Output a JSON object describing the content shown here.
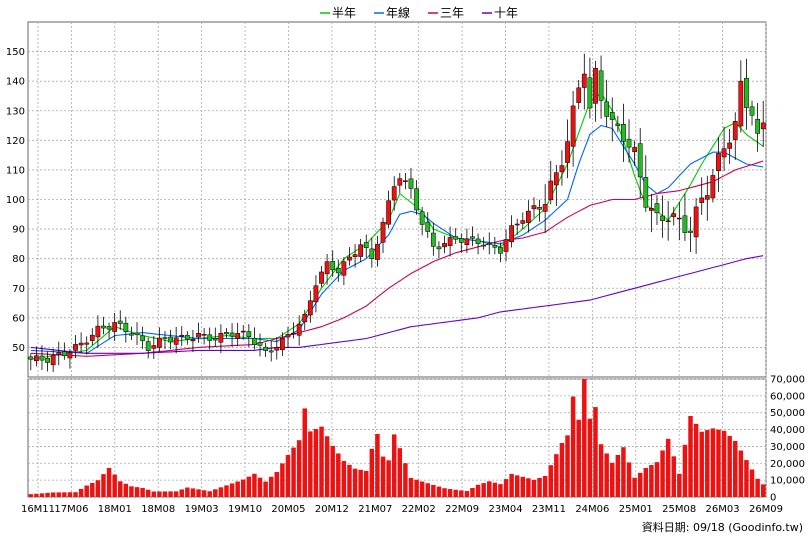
{
  "legend": [
    {
      "label": "半年",
      "color": "#00cc00"
    },
    {
      "label": "年線",
      "color": "#0066ff"
    },
    {
      "label": "三年",
      "color": "#cc0055"
    },
    {
      "label": "十年",
      "color": "#6600cc"
    }
  ],
  "source_note": "資料日期: 09/18  (Goodinfo.tw)",
  "colors": {
    "up": "#ee1111",
    "down": "#22bb22",
    "volume": "#ee1111",
    "grid": "#aaaaaa"
  },
  "chart_data": {
    "type": "candlestick-with-volume",
    "x_labels": [
      "16M11",
      "17M06",
      "18M01",
      "18M08",
      "19M03",
      "19M10",
      "20M05",
      "20M12",
      "21M07",
      "22M02",
      "22M09",
      "23M04",
      "23M11",
      "24M06",
      "25M01",
      "25M08",
      "26M03",
      "26M09"
    ],
    "price_axis": {
      "ticks": [
        50,
        60,
        70,
        80,
        90,
        100,
        110,
        120,
        130,
        140,
        150
      ],
      "range": [
        40,
        160
      ]
    },
    "volume_axis": {
      "ticks": [
        "0",
        "10,000",
        "20,000",
        "30,000",
        "40,000",
        "50,000",
        "60,000",
        "70,000"
      ],
      "range": [
        0,
        70000
      ]
    },
    "grid": true,
    "legend_position": "top-center",
    "anchors_price": [
      [
        0,
        46
      ],
      [
        3,
        46
      ],
      [
        6,
        48
      ],
      [
        9,
        51
      ],
      [
        12,
        56
      ],
      [
        15,
        58
      ],
      [
        18,
        55
      ],
      [
        21,
        50
      ],
      [
        24,
        53
      ],
      [
        27,
        53
      ],
      [
        30,
        54
      ],
      [
        33,
        53
      ],
      [
        36,
        55
      ],
      [
        39,
        54
      ],
      [
        42,
        48
      ],
      [
        45,
        52
      ],
      [
        47,
        56
      ],
      [
        49,
        60
      ],
      [
        51,
        72
      ],
      [
        53,
        78
      ],
      [
        55,
        76
      ],
      [
        57,
        80
      ],
      [
        59,
        85
      ],
      [
        61,
        80
      ],
      [
        63,
        92
      ],
      [
        65,
        105
      ],
      [
        66,
        108
      ],
      [
        68,
        103
      ],
      [
        70,
        92
      ],
      [
        72,
        84
      ],
      [
        74,
        85
      ],
      [
        76,
        87
      ],
      [
        78,
        86
      ],
      [
        80,
        86
      ],
      [
        82,
        84
      ],
      [
        84,
        83
      ],
      [
        86,
        90
      ],
      [
        88,
        94
      ],
      [
        90,
        97
      ],
      [
        92,
        100
      ],
      [
        94,
        108
      ],
      [
        96,
        120
      ],
      [
        98,
        138
      ],
      [
        99,
        145
      ],
      [
        100,
        130
      ],
      [
        101,
        142
      ],
      [
        102,
        135
      ],
      [
        104,
        125
      ],
      [
        106,
        122
      ],
      [
        108,
        115
      ],
      [
        110,
        100
      ],
      [
        112,
        93
      ],
      [
        114,
        95
      ],
      [
        116,
        92
      ],
      [
        118,
        90
      ],
      [
        120,
        100
      ],
      [
        122,
        108
      ],
      [
        124,
        118
      ],
      [
        126,
        125
      ],
      [
        127,
        138
      ],
      [
        128,
        133
      ],
      [
        129,
        130
      ],
      [
        130,
        120
      ],
      [
        131,
        125
      ]
    ],
    "anchors_vol": [
      [
        0,
        2000
      ],
      [
        4,
        3000
      ],
      [
        8,
        3000
      ],
      [
        10,
        7000
      ],
      [
        12,
        10000
      ],
      [
        14,
        17000
      ],
      [
        16,
        9000
      ],
      [
        18,
        6000
      ],
      [
        20,
        5000
      ],
      [
        22,
        3000
      ],
      [
        24,
        3000
      ],
      [
        26,
        3000
      ],
      [
        28,
        5000
      ],
      [
        30,
        4000
      ],
      [
        32,
        3000
      ],
      [
        34,
        5000
      ],
      [
        36,
        7000
      ],
      [
        38,
        9000
      ],
      [
        40,
        12000
      ],
      [
        42,
        8000
      ],
      [
        44,
        13000
      ],
      [
        46,
        22000
      ],
      [
        48,
        30000
      ],
      [
        49,
        47000
      ],
      [
        50,
        35000
      ],
      [
        52,
        38000
      ],
      [
        54,
        28000
      ],
      [
        56,
        20000
      ],
      [
        58,
        16000
      ],
      [
        60,
        15000
      ],
      [
        61,
        28000
      ],
      [
        62,
        37000
      ],
      [
        63,
        24000
      ],
      [
        64,
        22000
      ],
      [
        65,
        38000
      ],
      [
        66,
        30000
      ],
      [
        68,
        12000
      ],
      [
        70,
        10000
      ],
      [
        72,
        8000
      ],
      [
        74,
        6000
      ],
      [
        76,
        5000
      ],
      [
        78,
        4000
      ],
      [
        80,
        8000
      ],
      [
        82,
        10000
      ],
      [
        84,
        8000
      ],
      [
        86,
        14000
      ],
      [
        88,
        12000
      ],
      [
        90,
        10000
      ],
      [
        92,
        12000
      ],
      [
        94,
        24000
      ],
      [
        95,
        30000
      ],
      [
        96,
        34000
      ],
      [
        97,
        55000
      ],
      [
        98,
        42000
      ],
      [
        99,
        70000
      ],
      [
        100,
        42000
      ],
      [
        101,
        48000
      ],
      [
        102,
        28000
      ],
      [
        104,
        18000
      ],
      [
        106,
        26000
      ],
      [
        108,
        10000
      ],
      [
        110,
        15000
      ],
      [
        112,
        18000
      ],
      [
        114,
        30000
      ],
      [
        116,
        12000
      ],
      [
        118,
        42000
      ],
      [
        120,
        34000
      ],
      [
        122,
        36000
      ],
      [
        124,
        35000
      ],
      [
        126,
        30000
      ],
      [
        128,
        20000
      ],
      [
        129,
        15000
      ],
      [
        130,
        10000
      ],
      [
        131,
        7000
      ]
    ],
    "ma_half": [
      [
        0,
        46
      ],
      [
        10,
        49
      ],
      [
        15,
        57
      ],
      [
        20,
        54
      ],
      [
        25,
        52
      ],
      [
        30,
        53
      ],
      [
        35,
        54
      ],
      [
        40,
        53
      ],
      [
        44,
        53
      ],
      [
        48,
        58
      ],
      [
        52,
        70
      ],
      [
        56,
        80
      ],
      [
        60,
        85
      ],
      [
        64,
        93
      ],
      [
        66,
        102
      ],
      [
        68,
        99
      ],
      [
        70,
        96
      ],
      [
        72,
        90
      ],
      [
        76,
        87
      ],
      [
        80,
        86
      ],
      [
        84,
        84
      ],
      [
        88,
        90
      ],
      [
        92,
        97
      ],
      [
        96,
        112
      ],
      [
        100,
        133
      ],
      [
        102,
        136
      ],
      [
        104,
        130
      ],
      [
        106,
        120
      ],
      [
        108,
        108
      ],
      [
        110,
        98
      ],
      [
        112,
        96
      ],
      [
        114,
        93
      ],
      [
        116,
        99
      ],
      [
        118,
        105
      ],
      [
        120,
        112
      ],
      [
        122,
        118
      ],
      [
        124,
        124
      ],
      [
        126,
        126
      ],
      [
        128,
        122
      ],
      [
        131,
        118
      ]
    ],
    "ma_year": [
      [
        0,
        49
      ],
      [
        10,
        48
      ],
      [
        15,
        54
      ],
      [
        20,
        55
      ],
      [
        25,
        54
      ],
      [
        30,
        53
      ],
      [
        35,
        53
      ],
      [
        40,
        53
      ],
      [
        44,
        52
      ],
      [
        48,
        56
      ],
      [
        52,
        68
      ],
      [
        56,
        76
      ],
      [
        60,
        80
      ],
      [
        64,
        88
      ],
      [
        66,
        95
      ],
      [
        68,
        96
      ],
      [
        70,
        95
      ],
      [
        72,
        92
      ],
      [
        76,
        87
      ],
      [
        80,
        86
      ],
      [
        84,
        85
      ],
      [
        88,
        88
      ],
      [
        92,
        93
      ],
      [
        96,
        100
      ],
      [
        98,
        112
      ],
      [
        100,
        122
      ],
      [
        102,
        125
      ],
      [
        104,
        124
      ],
      [
        106,
        118
      ],
      [
        108,
        112
      ],
      [
        110,
        105
      ],
      [
        112,
        102
      ],
      [
        114,
        104
      ],
      [
        116,
        108
      ],
      [
        118,
        112
      ],
      [
        120,
        114
      ],
      [
        122,
        116
      ],
      [
        124,
        116
      ],
      [
        126,
        114
      ],
      [
        128,
        112
      ],
      [
        131,
        111
      ]
    ],
    "ma_3y": [
      [
        0,
        48
      ],
      [
        10,
        47
      ],
      [
        20,
        48
      ],
      [
        30,
        50
      ],
      [
        40,
        51
      ],
      [
        44,
        53
      ],
      [
        48,
        55
      ],
      [
        52,
        57
      ],
      [
        56,
        60
      ],
      [
        60,
        64
      ],
      [
        64,
        70
      ],
      [
        68,
        75
      ],
      [
        72,
        79
      ],
      [
        76,
        82
      ],
      [
        80,
        84
      ],
      [
        84,
        86
      ],
      [
        88,
        87
      ],
      [
        92,
        89
      ],
      [
        96,
        94
      ],
      [
        100,
        98
      ],
      [
        104,
        100
      ],
      [
        108,
        100
      ],
      [
        112,
        102
      ],
      [
        116,
        103
      ],
      [
        118,
        104
      ],
      [
        122,
        106
      ],
      [
        126,
        110
      ],
      [
        131,
        113
      ]
    ],
    "ma_10y": [
      [
        0,
        50
      ],
      [
        10,
        48
      ],
      [
        20,
        48
      ],
      [
        30,
        49
      ],
      [
        40,
        49
      ],
      [
        44,
        50
      ],
      [
        48,
        50
      ],
      [
        52,
        51
      ],
      [
        56,
        52
      ],
      [
        60,
        53
      ],
      [
        64,
        55
      ],
      [
        68,
        57
      ],
      [
        72,
        58
      ],
      [
        76,
        59
      ],
      [
        80,
        60
      ],
      [
        84,
        62
      ],
      [
        88,
        63
      ],
      [
        92,
        64
      ],
      [
        96,
        65
      ],
      [
        100,
        66
      ],
      [
        104,
        68
      ],
      [
        108,
        70
      ],
      [
        112,
        72
      ],
      [
        116,
        74
      ],
      [
        120,
        76
      ],
      [
        124,
        78
      ],
      [
        128,
        80
      ],
      [
        131,
        81
      ]
    ]
  }
}
